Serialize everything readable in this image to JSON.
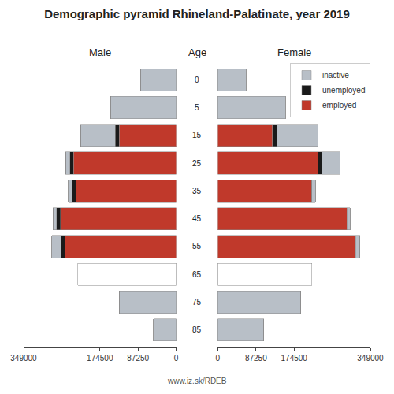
{
  "chart_data": [
    {
      "type": "bar",
      "orientation": "horizontal",
      "stacked": true,
      "title": "Demographic pyramid Rhineland-Palatinate, year 2019",
      "xlabel": "Male",
      "annotations": [
        "Age",
        "www.iz.sk/RDEB"
      ],
      "categories": [
        "85",
        "75",
        "65",
        "55",
        "45",
        "35",
        "25",
        "15",
        "5",
        "0"
      ],
      "xlim": [
        0,
        349000
      ],
      "xticks": [
        0,
        87250,
        174500,
        349000
      ],
      "grid": false,
      "series": [
        {
          "name": "employed",
          "color": "#c0392b",
          "values": [
            0,
            0,
            0,
            255000,
            265000,
            230000,
            235000,
            130000,
            0,
            0
          ]
        },
        {
          "name": "unemployed",
          "color": "#1a1a1a",
          "values": [
            0,
            0,
            0,
            8000,
            9000,
            9000,
            8000,
            9000,
            0,
            0
          ]
        },
        {
          "name": "inactive",
          "color": "#b8bfc7",
          "values": [
            52000,
            130000,
            0,
            22000,
            8000,
            8000,
            10000,
            80000,
            150000,
            82000
          ]
        },
        {
          "color": "#ffffff",
          "values": [
            0,
            0,
            225000,
            0,
            0,
            0,
            0,
            0,
            0,
            0
          ]
        }
      ]
    },
    {
      "type": "bar",
      "orientation": "horizontal",
      "stacked": true,
      "xlabel": "Female",
      "categories": [
        "85",
        "75",
        "65",
        "55",
        "45",
        "35",
        "25",
        "15",
        "5",
        "0"
      ],
      "xlim": [
        0,
        349000
      ],
      "xticks": [
        0,
        87250,
        174500,
        349000
      ],
      "grid": false,
      "legend": "upper right",
      "series": [
        {
          "name": "employed",
          "color": "#c0392b",
          "values": [
            0,
            0,
            0,
            315000,
            295000,
            215000,
            230000,
            125000,
            0,
            0
          ]
        },
        {
          "name": "unemployed",
          "color": "#1a1a1a",
          "values": [
            0,
            0,
            0,
            0,
            0,
            0,
            8000,
            10000,
            0,
            0
          ]
        },
        {
          "name": "inactive",
          "color": "#b8bfc7",
          "values": [
            105000,
            190000,
            0,
            10000,
            8000,
            8000,
            42000,
            95000,
            155000,
            65000
          ]
        },
        {
          "color": "#ffffff",
          "values": [
            0,
            0,
            215000,
            0,
            0,
            0,
            0,
            0,
            0,
            0
          ]
        }
      ]
    }
  ]
}
